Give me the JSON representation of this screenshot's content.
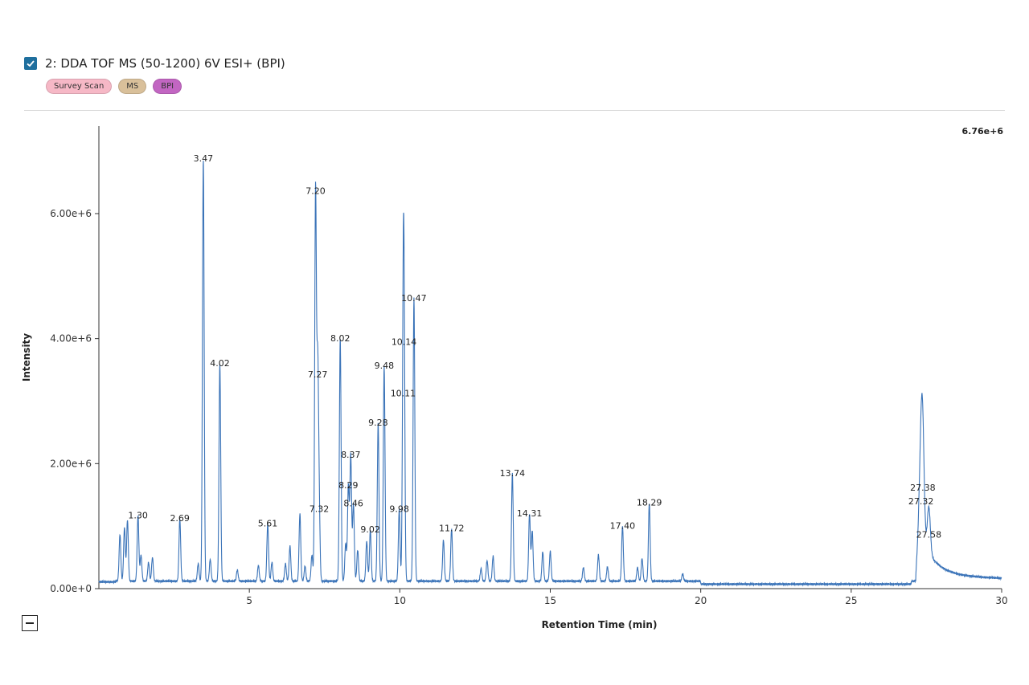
{
  "header": {
    "checkbox_checked": true,
    "title": "2: DDA TOF MS (50-1200) 6V ESI+ (BPI)",
    "tags": [
      {
        "label": "Survey Scan",
        "color": "#f6b8c6"
      },
      {
        "label": "MS",
        "color": "#d9c09a"
      },
      {
        "label": "BPI",
        "color": "#c266c2"
      }
    ]
  },
  "chart_data": {
    "type": "line",
    "title": "",
    "xlabel": "Retention Time (min)",
    "ylabel": "Intensity",
    "xlim": [
      0,
      30
    ],
    "ylim": [
      0,
      7400000
    ],
    "max_label": "6.76e+6",
    "x_ticks": [
      5,
      10,
      15,
      20,
      25,
      30
    ],
    "y_ticks": [
      {
        "value": 0,
        "label": "0.00e+0"
      },
      {
        "value": 2000000,
        "label": "2.00e+6"
      },
      {
        "value": 4000000,
        "label": "4.00e+6"
      },
      {
        "value": 6000000,
        "label": "6.00e+6"
      }
    ],
    "line_color": "#3a73b8",
    "baseline": 120000,
    "peaks": [
      {
        "rt": 0.7,
        "h": 750000,
        "label": ""
      },
      {
        "rt": 0.85,
        "h": 860000,
        "label": ""
      },
      {
        "rt": 0.95,
        "h": 980000,
        "label": ""
      },
      {
        "rt": 1.3,
        "h": 1050000,
        "label": "1.30"
      },
      {
        "rt": 1.4,
        "h": 420000,
        "label": ""
      },
      {
        "rt": 1.65,
        "h": 300000,
        "label": ""
      },
      {
        "rt": 1.78,
        "h": 380000,
        "label": ""
      },
      {
        "rt": 2.69,
        "h": 1000000,
        "label": "2.69"
      },
      {
        "rt": 3.3,
        "h": 280000,
        "label": ""
      },
      {
        "rt": 3.47,
        "h": 6760000,
        "label": "3.47"
      },
      {
        "rt": 3.7,
        "h": 350000,
        "label": ""
      },
      {
        "rt": 4.02,
        "h": 3480000,
        "label": "4.02"
      },
      {
        "rt": 4.6,
        "h": 180000,
        "label": ""
      },
      {
        "rt": 5.3,
        "h": 250000,
        "label": ""
      },
      {
        "rt": 5.61,
        "h": 920000,
        "label": "5.61"
      },
      {
        "rt": 5.75,
        "h": 300000,
        "label": ""
      },
      {
        "rt": 6.2,
        "h": 280000,
        "label": ""
      },
      {
        "rt": 6.35,
        "h": 560000,
        "label": ""
      },
      {
        "rt": 6.68,
        "h": 1080000,
        "label": ""
      },
      {
        "rt": 6.85,
        "h": 240000,
        "label": ""
      },
      {
        "rt": 7.08,
        "h": 420000,
        "label": ""
      },
      {
        "rt": 7.2,
        "h": 6240000,
        "label": "7.20"
      },
      {
        "rt": 7.27,
        "h": 3300000,
        "label": "7.27"
      },
      {
        "rt": 7.32,
        "h": 1150000,
        "label": "7.32"
      },
      {
        "rt": 8.02,
        "h": 3880000,
        "label": "8.02"
      },
      {
        "rt": 8.2,
        "h": 600000,
        "label": ""
      },
      {
        "rt": 8.29,
        "h": 1530000,
        "label": "8.29"
      },
      {
        "rt": 8.37,
        "h": 2020000,
        "label": "8.37"
      },
      {
        "rt": 8.46,
        "h": 1240000,
        "label": "8.46"
      },
      {
        "rt": 8.6,
        "h": 500000,
        "label": ""
      },
      {
        "rt": 8.9,
        "h": 640000,
        "label": ""
      },
      {
        "rt": 9.02,
        "h": 820000,
        "label": "9.02"
      },
      {
        "rt": 9.28,
        "h": 2530000,
        "label": "9.28"
      },
      {
        "rt": 9.48,
        "h": 3440000,
        "label": "9.48"
      },
      {
        "rt": 9.98,
        "h": 1150000,
        "label": "9.98"
      },
      {
        "rt": 10.11,
        "h": 3000000,
        "label": "10.11"
      },
      {
        "rt": 10.14,
        "h": 3820000,
        "label": "10.14"
      },
      {
        "rt": 10.47,
        "h": 4520000,
        "label": "10.47"
      },
      {
        "rt": 11.45,
        "h": 660000,
        "label": ""
      },
      {
        "rt": 11.72,
        "h": 840000,
        "label": "11.72"
      },
      {
        "rt": 12.7,
        "h": 200000,
        "label": ""
      },
      {
        "rt": 12.9,
        "h": 330000,
        "label": ""
      },
      {
        "rt": 13.1,
        "h": 400000,
        "label": ""
      },
      {
        "rt": 13.74,
        "h": 1720000,
        "label": "13.74"
      },
      {
        "rt": 14.31,
        "h": 1080000,
        "label": "14.31"
      },
      {
        "rt": 14.4,
        "h": 800000,
        "label": ""
      },
      {
        "rt": 14.75,
        "h": 470000,
        "label": ""
      },
      {
        "rt": 15.0,
        "h": 480000,
        "label": ""
      },
      {
        "rt": 16.1,
        "h": 220000,
        "label": ""
      },
      {
        "rt": 16.6,
        "h": 420000,
        "label": ""
      },
      {
        "rt": 16.9,
        "h": 230000,
        "label": ""
      },
      {
        "rt": 17.4,
        "h": 880000,
        "label": "17.40"
      },
      {
        "rt": 17.9,
        "h": 220000,
        "label": ""
      },
      {
        "rt": 18.05,
        "h": 360000,
        "label": ""
      },
      {
        "rt": 18.29,
        "h": 1250000,
        "label": "18.29"
      },
      {
        "rt": 19.4,
        "h": 120000,
        "label": ""
      },
      {
        "rt": 27.32,
        "h": 1270000,
        "label": "27.32"
      },
      {
        "rt": 27.38,
        "h": 1490000,
        "label": "27.38"
      },
      {
        "rt": 27.58,
        "h": 740000,
        "label": "27.58"
      }
    ]
  }
}
